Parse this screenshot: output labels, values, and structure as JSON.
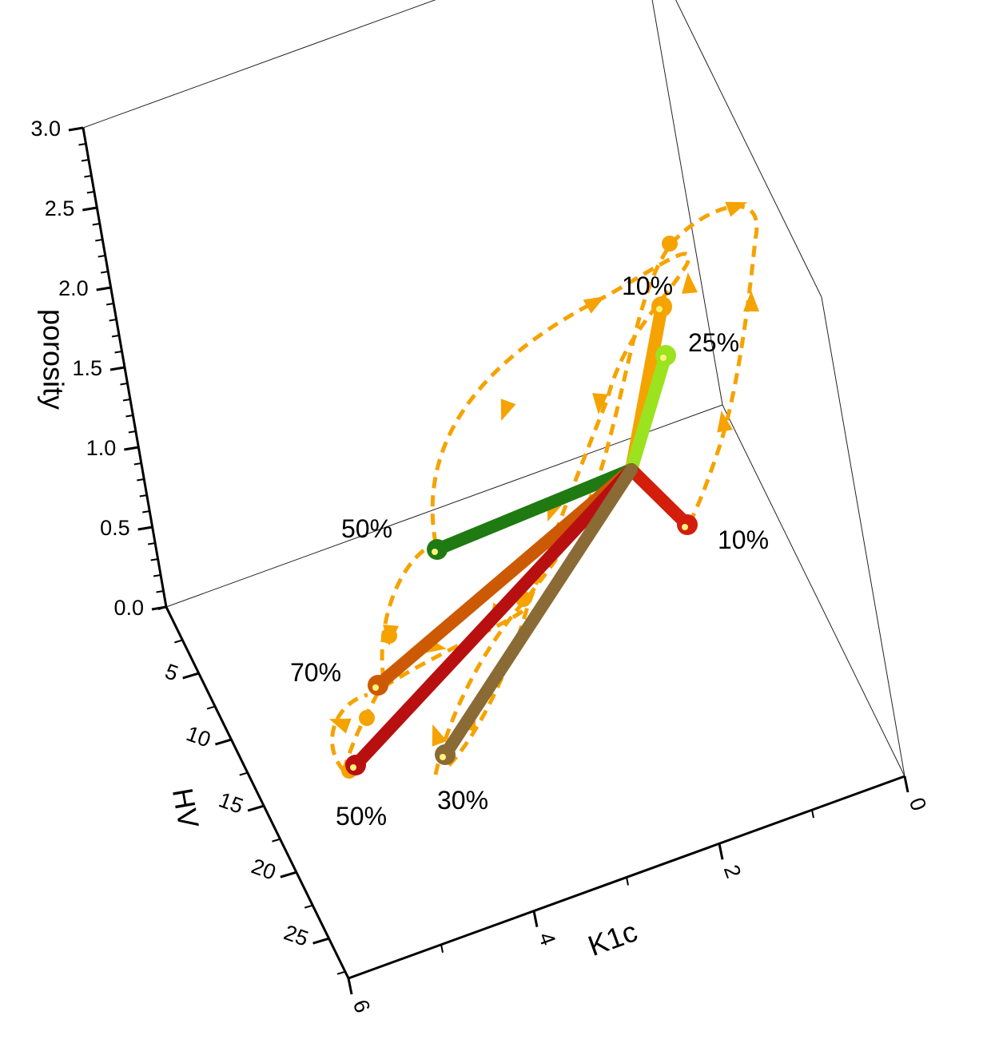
{
  "chart_data": {
    "type": "scatter",
    "projection": "3d",
    "axes": {
      "z": {
        "title": "porosity",
        "ticks": [
          "0.0",
          "0.5",
          "1.0",
          "1.5",
          "2.0",
          "2.5",
          "3.0"
        ],
        "range": [
          0,
          3.0
        ]
      },
      "hv": {
        "title": "HV",
        "ticks": [
          "5",
          "10",
          "15",
          "20",
          "25"
        ],
        "range": [
          0,
          28
        ]
      },
      "k1c": {
        "title": "K1c",
        "ticks": [
          "0",
          "2",
          "4",
          "6"
        ],
        "range": [
          0,
          6
        ]
      }
    },
    "origin": {
      "hv": 4.5,
      "k1c": 2.6,
      "porosity": 1.6
    },
    "series": [
      {
        "label": "10%",
        "color": "#f5a300",
        "end": {
          "hv": 3.0,
          "k1c": 3.4,
          "porosity": 2.25
        }
      },
      {
        "label": "25%",
        "color": "#9be31f",
        "end": {
          "hv": 2.6,
          "k1c": 3.0,
          "porosity": 2.05
        }
      },
      {
        "label": "10%",
        "color": "#d21e0a",
        "end": {
          "hv": 5.0,
          "k1c": 1.9,
          "porosity": 1.55
        }
      },
      {
        "label": "50%",
        "color": "#1f7a12",
        "end": {
          "hv": 5.2,
          "k1c": 4.8,
          "porosity": 1.1
        }
      },
      {
        "label": "70%",
        "color": "#cc5a05",
        "end": {
          "hv": 10.0,
          "k1c": 4.9,
          "porosity": 0.9
        }
      },
      {
        "label": "50%",
        "color": "#b81010",
        "end": {
          "hv": 13.0,
          "k1c": 4.4,
          "porosity": 0.55
        }
      },
      {
        "label": "30%",
        "color": "#8a6a35",
        "end": {
          "hv": 13.0,
          "k1c": 3.3,
          "porosity": 0.4
        }
      }
    ],
    "paths": [
      {
        "style": "dashed",
        "color": "#f5a300"
      }
    ]
  }
}
